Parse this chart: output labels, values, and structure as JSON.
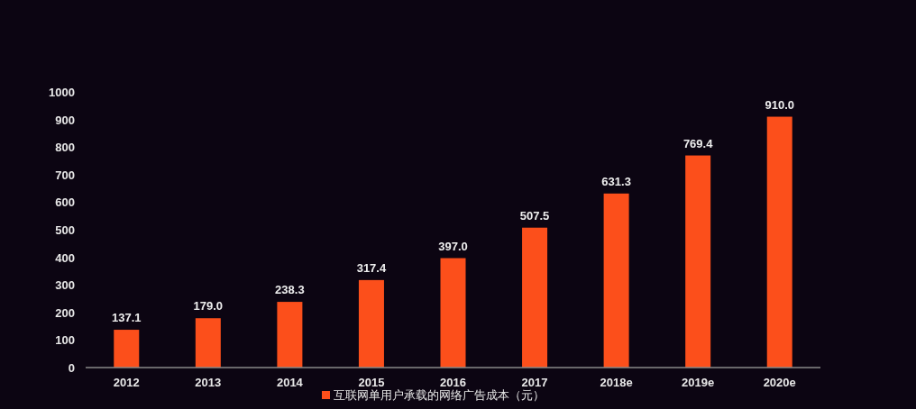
{
  "chart_data": {
    "type": "bar",
    "categories": [
      "2012",
      "2013",
      "2014",
      "2015",
      "2016",
      "2017",
      "2018e",
      "2019e",
      "2020e"
    ],
    "series": [
      {
        "name": "互联网单用户承载的网络广告成本（元）",
        "color": "#fc4f1b",
        "values": [
          137.1,
          179.0,
          238.3,
          317.4,
          397.0,
          507.5,
          631.3,
          769.4,
          910.0
        ]
      }
    ],
    "value_labels": [
      "137.1",
      "179.0",
      "238.3",
      "317.4",
      "397.0",
      "507.5",
      "631.3",
      "769.4",
      "910.0"
    ],
    "ylim": [
      0,
      1000
    ],
    "yticks": [
      0,
      100,
      200,
      300,
      400,
      500,
      600,
      700,
      800,
      900,
      1000
    ],
    "grid": false,
    "legend": "bottom"
  }
}
